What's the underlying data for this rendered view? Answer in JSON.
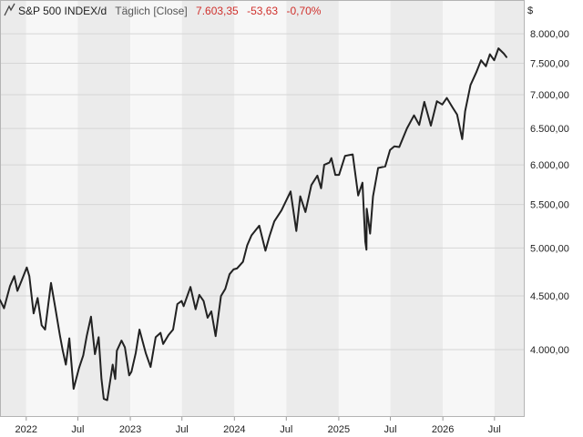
{
  "header": {
    "symbol_title": "S&P 500 INDEX/d",
    "interval_label": "Täglich [Close]",
    "last_value": "7.603,35",
    "change_abs": "-53,63",
    "change_pct": "-0,70%",
    "currency_label": "$",
    "icon": "line-chart-icon"
  },
  "colors": {
    "line": "#222222",
    "negative": "#d0312d",
    "band_light": "#f7f7f7",
    "band_dark": "#ebebeb",
    "grid": "#d6d6d6"
  },
  "chart_data": {
    "type": "line",
    "title": "S&P 500 INDEX/d",
    "xlabel": "",
    "ylabel": "",
    "y_scale": "log",
    "ylim": [
      3450,
      8600
    ],
    "xlim": [
      "2021-10-01",
      "2026-10-15"
    ],
    "grid": true,
    "yticks": [
      {
        "value": 4000,
        "label": "4.000,00"
      },
      {
        "value": 4500,
        "label": "4.500,00"
      },
      {
        "value": 5000,
        "label": "5.000,00"
      },
      {
        "value": 5500,
        "label": "5.500,00"
      },
      {
        "value": 6000,
        "label": "6.000,00"
      },
      {
        "value": 6500,
        "label": "6.500,00"
      },
      {
        "value": 7000,
        "label": "7.000,00"
      },
      {
        "value": 7500,
        "label": "7.500,00"
      },
      {
        "value": 8000,
        "label": "8.000,00"
      }
    ],
    "xticks": [
      {
        "date": "2022-01-01",
        "label": "2022"
      },
      {
        "date": "2022-07-01",
        "label": "Jul"
      },
      {
        "date": "2023-01-01",
        "label": "2023"
      },
      {
        "date": "2023-07-01",
        "label": "Jul"
      },
      {
        "date": "2024-01-01",
        "label": "2024"
      },
      {
        "date": "2024-07-01",
        "label": "Jul"
      },
      {
        "date": "2025-01-01",
        "label": "2025"
      },
      {
        "date": "2025-07-01",
        "label": "Jul"
      },
      {
        "date": "2026-01-01",
        "label": "2026"
      },
      {
        "date": "2026-07-01",
        "label": "Jul"
      }
    ],
    "series": [
      {
        "name": "",
        "points": [
          [
            "2021-10-01",
            4460
          ],
          [
            "2021-10-15",
            4380
          ],
          [
            "2021-11-05",
            4600
          ],
          [
            "2021-11-20",
            4700
          ],
          [
            "2021-12-01",
            4550
          ],
          [
            "2021-12-15",
            4650
          ],
          [
            "2022-01-03",
            4790
          ],
          [
            "2022-01-12",
            4700
          ],
          [
            "2022-01-27",
            4330
          ],
          [
            "2022-02-10",
            4480
          ],
          [
            "2022-02-24",
            4220
          ],
          [
            "2022-03-08",
            4180
          ],
          [
            "2022-03-29",
            4630
          ],
          [
            "2022-04-12",
            4400
          ],
          [
            "2022-04-29",
            4130
          ],
          [
            "2022-05-09",
            3990
          ],
          [
            "2022-05-20",
            3870
          ],
          [
            "2022-06-01",
            4100
          ],
          [
            "2022-06-16",
            3670
          ],
          [
            "2022-07-05",
            3840
          ],
          [
            "2022-07-20",
            3950
          ],
          [
            "2022-08-01",
            4120
          ],
          [
            "2022-08-16",
            4300
          ],
          [
            "2022-08-30",
            3960
          ],
          [
            "2022-09-12",
            4110
          ],
          [
            "2022-09-22",
            3750
          ],
          [
            "2022-09-30",
            3590
          ],
          [
            "2022-10-12",
            3580
          ],
          [
            "2022-10-31",
            3870
          ],
          [
            "2022-11-09",
            3750
          ],
          [
            "2022-11-15",
            3990
          ],
          [
            "2022-12-01",
            4080
          ],
          [
            "2022-12-13",
            4020
          ],
          [
            "2022-12-28",
            3780
          ],
          [
            "2023-01-05",
            3810
          ],
          [
            "2023-01-20",
            3970
          ],
          [
            "2023-02-02",
            4180
          ],
          [
            "2023-02-24",
            3970
          ],
          [
            "2023-03-13",
            3850
          ],
          [
            "2023-03-31",
            4110
          ],
          [
            "2023-04-17",
            4150
          ],
          [
            "2023-04-26",
            4050
          ],
          [
            "2023-05-15",
            4130
          ],
          [
            "2023-05-31",
            4180
          ],
          [
            "2023-06-15",
            4420
          ],
          [
            "2023-06-30",
            4450
          ],
          [
            "2023-07-07",
            4400
          ],
          [
            "2023-07-31",
            4590
          ],
          [
            "2023-08-18",
            4370
          ],
          [
            "2023-08-31",
            4510
          ],
          [
            "2023-09-15",
            4450
          ],
          [
            "2023-09-29",
            4290
          ],
          [
            "2023-10-12",
            4350
          ],
          [
            "2023-10-27",
            4120
          ],
          [
            "2023-11-15",
            4500
          ],
          [
            "2023-11-30",
            4570
          ],
          [
            "2023-12-15",
            4720
          ],
          [
            "2023-12-29",
            4770
          ],
          [
            "2024-01-10",
            4780
          ],
          [
            "2024-01-31",
            4850
          ],
          [
            "2024-02-15",
            5030
          ],
          [
            "2024-03-01",
            5140
          ],
          [
            "2024-03-28",
            5250
          ],
          [
            "2024-04-19",
            4970
          ],
          [
            "2024-05-03",
            5130
          ],
          [
            "2024-05-20",
            5300
          ],
          [
            "2024-06-14",
            5430
          ],
          [
            "2024-07-16",
            5660
          ],
          [
            "2024-08-05",
            5190
          ],
          [
            "2024-08-19",
            5600
          ],
          [
            "2024-09-06",
            5410
          ],
          [
            "2024-09-27",
            5740
          ],
          [
            "2024-10-18",
            5860
          ],
          [
            "2024-10-31",
            5700
          ],
          [
            "2024-11-11",
            6000
          ],
          [
            "2024-11-29",
            6030
          ],
          [
            "2024-12-06",
            6090
          ],
          [
            "2024-12-20",
            5870
          ],
          [
            "2025-01-02",
            5870
          ],
          [
            "2025-01-23",
            6120
          ],
          [
            "2025-02-19",
            6140
          ],
          [
            "2025-03-10",
            5610
          ],
          [
            "2025-03-25",
            5770
          ],
          [
            "2025-04-04",
            5070
          ],
          [
            "2025-04-08",
            4980
          ],
          [
            "2025-04-09",
            5450
          ],
          [
            "2025-04-21",
            5160
          ],
          [
            "2025-05-01",
            5600
          ],
          [
            "2025-05-19",
            5960
          ],
          [
            "2025-06-13",
            5980
          ],
          [
            "2025-06-30",
            6200
          ],
          [
            "2025-07-15",
            6250
          ],
          [
            "2025-08-01",
            6240
          ],
          [
            "2025-08-28",
            6500
          ],
          [
            "2025-09-22",
            6690
          ],
          [
            "2025-10-10",
            6550
          ],
          [
            "2025-10-28",
            6890
          ],
          [
            "2025-11-20",
            6540
          ],
          [
            "2025-12-11",
            6900
          ],
          [
            "2025-12-30",
            6850
          ],
          [
            "2026-01-15",
            6950
          ],
          [
            "2026-02-05",
            6800
          ],
          [
            "2026-02-20",
            6700
          ],
          [
            "2026-03-10",
            6350
          ],
          [
            "2026-03-20",
            6750
          ],
          [
            "2026-04-08",
            7150
          ],
          [
            "2026-04-28",
            7350
          ],
          [
            "2026-05-15",
            7550
          ],
          [
            "2026-06-01",
            7450
          ],
          [
            "2026-06-15",
            7650
          ],
          [
            "2026-06-30",
            7550
          ],
          [
            "2026-07-15",
            7750
          ],
          [
            "2026-08-03",
            7660
          ],
          [
            "2026-08-12",
            7603
          ]
        ]
      }
    ]
  }
}
